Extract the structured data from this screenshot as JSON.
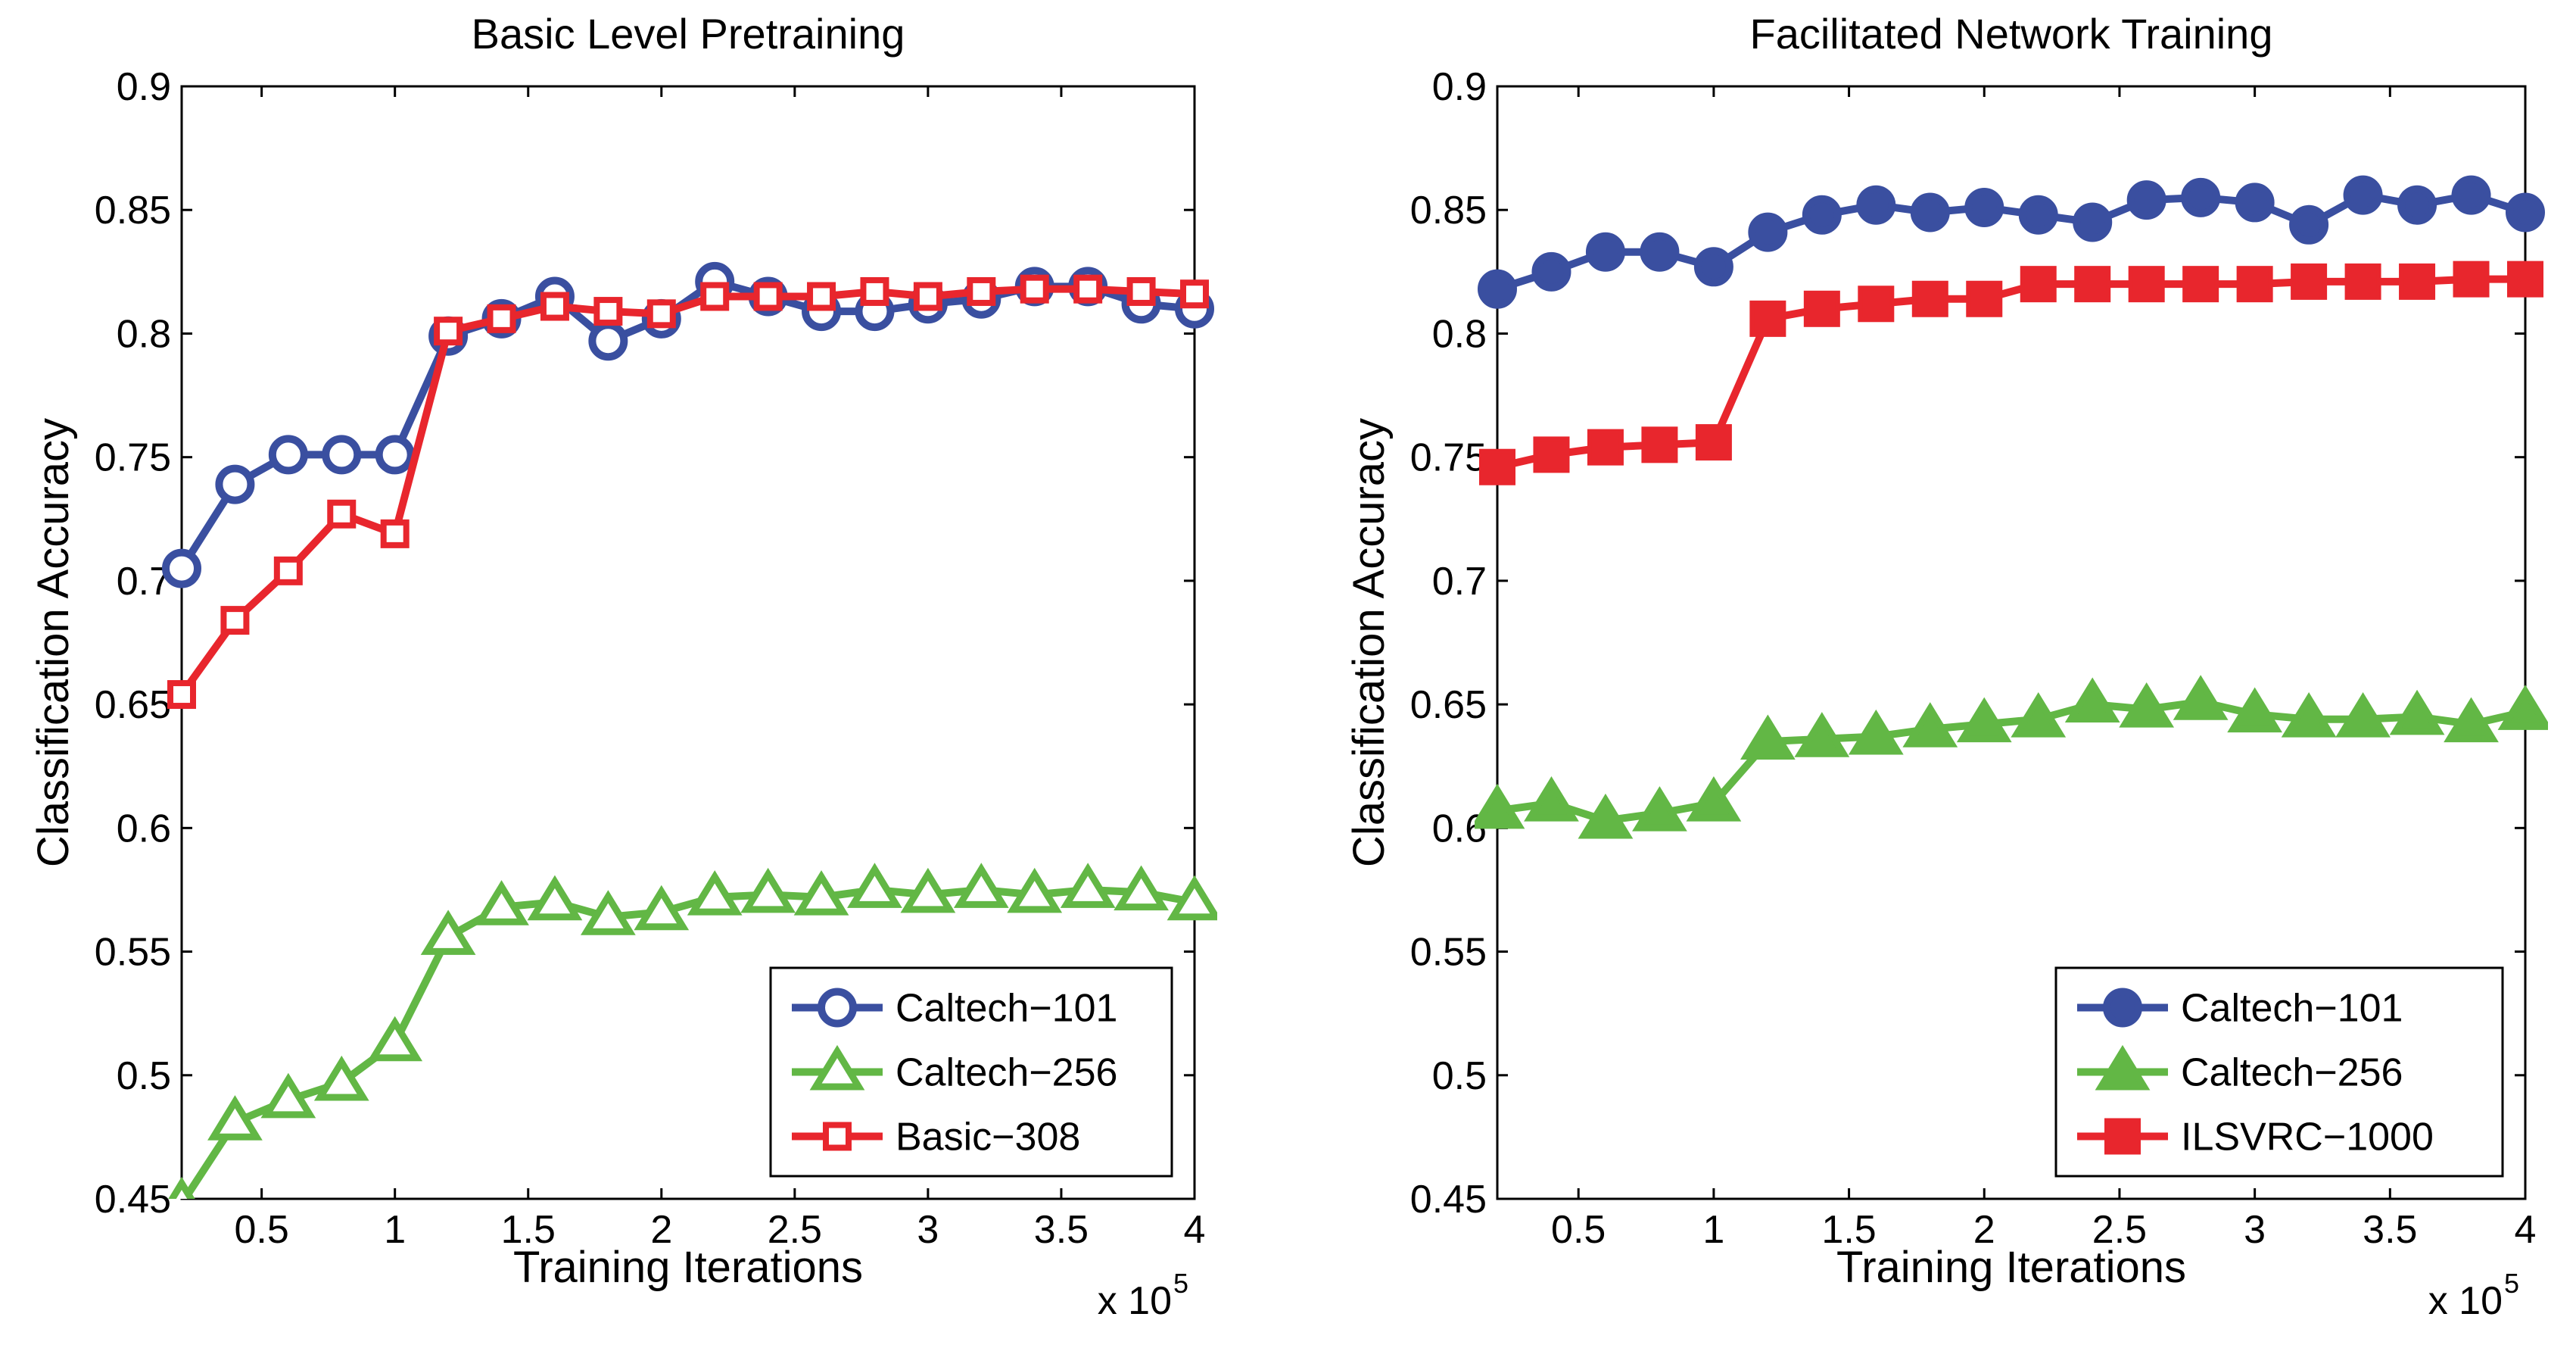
{
  "chart_data": [
    {
      "type": "line",
      "title": "Basic Level Pretraining",
      "xlabel": "Training Iterations",
      "ylabel": "Classification Accuracy",
      "x_multiplier_label": "x 10",
      "x_multiplier_exp": "5",
      "xlim": [
        0.2,
        4.0
      ],
      "ylim": [
        0.45,
        0.9
      ],
      "x_ticks": [
        "0.5",
        "1",
        "1.5",
        "2",
        "2.5",
        "3",
        "3.5",
        "4"
      ],
      "y_ticks": [
        "0.45",
        "0.5",
        "0.55",
        "0.6",
        "0.65",
        "0.7",
        "0.75",
        "0.8",
        "0.85",
        "0.9"
      ],
      "legend_position": "bottom-right",
      "x": [
        0.2,
        0.4,
        0.6,
        0.8,
        1.0,
        1.2,
        1.4,
        1.6,
        1.8,
        2.0,
        2.2,
        2.4,
        2.6,
        2.8,
        3.0,
        3.2,
        3.4,
        3.6,
        3.8,
        4.0
      ],
      "series": [
        {
          "name": "Caltech−101",
          "color": "#3a4fa0",
          "marker": "circle",
          "values": [
            0.705,
            0.739,
            0.751,
            0.751,
            0.751,
            0.799,
            0.806,
            0.815,
            0.797,
            0.806,
            0.821,
            0.815,
            0.809,
            0.809,
            0.812,
            0.814,
            0.819,
            0.819,
            0.812,
            0.81
          ]
        },
        {
          "name": "Caltech−256",
          "color": "#62b745",
          "marker": "triangle",
          "values": [
            0.448,
            0.481,
            0.49,
            0.497,
            0.513,
            0.556,
            0.568,
            0.57,
            0.564,
            0.566,
            0.572,
            0.573,
            0.572,
            0.575,
            0.573,
            0.575,
            0.573,
            0.575,
            0.574,
            0.57
          ]
        },
        {
          "name": "Basic−308",
          "color": "#e8262d",
          "marker": "square",
          "values": [
            0.654,
            0.684,
            0.704,
            0.727,
            0.719,
            0.801,
            0.806,
            0.811,
            0.809,
            0.808,
            0.815,
            0.815,
            0.815,
            0.817,
            0.815,
            0.817,
            0.818,
            0.818,
            0.817,
            0.816
          ]
        }
      ]
    },
    {
      "type": "line",
      "title": "Facilitated Network Training",
      "xlabel": "Training Iterations",
      "ylabel": "Classification Accuracy",
      "x_multiplier_label": "x 10",
      "x_multiplier_exp": "5",
      "xlim": [
        0.2,
        4.0
      ],
      "ylim": [
        0.45,
        0.9
      ],
      "x_ticks": [
        "0.5",
        "1",
        "1.5",
        "2",
        "2.5",
        "3",
        "3.5",
        "4"
      ],
      "y_ticks": [
        "0.45",
        "0.5",
        "0.55",
        "0.6",
        "0.65",
        "0.7",
        "0.75",
        "0.8",
        "0.85",
        "0.9"
      ],
      "legend_position": "bottom-right",
      "x": [
        0.2,
        0.4,
        0.6,
        0.8,
        1.0,
        1.2,
        1.4,
        1.6,
        1.8,
        2.0,
        2.2,
        2.4,
        2.6,
        2.8,
        3.0,
        3.2,
        3.4,
        3.6,
        3.8,
        4.0
      ],
      "series": [
        {
          "name": "Caltech−101",
          "color": "#3a4fa0",
          "marker": "circle-filled",
          "values": [
            0.818,
            0.825,
            0.833,
            0.833,
            0.827,
            0.841,
            0.848,
            0.852,
            0.849,
            0.851,
            0.848,
            0.845,
            0.854,
            0.855,
            0.853,
            0.844,
            0.856,
            0.852,
            0.856,
            0.849
          ]
        },
        {
          "name": "Caltech−256",
          "color": "#62b745",
          "marker": "triangle-filled",
          "values": [
            0.607,
            0.61,
            0.603,
            0.606,
            0.61,
            0.635,
            0.636,
            0.637,
            0.64,
            0.642,
            0.644,
            0.65,
            0.648,
            0.651,
            0.646,
            0.644,
            0.644,
            0.645,
            0.642,
            0.647
          ]
        },
        {
          "name": "ILSVRC−1000",
          "color": "#e8262d",
          "marker": "square-filled",
          "values": [
            0.746,
            0.751,
            0.754,
            0.755,
            0.756,
            0.806,
            0.81,
            0.812,
            0.814,
            0.814,
            0.82,
            0.82,
            0.82,
            0.82,
            0.82,
            0.821,
            0.821,
            0.821,
            0.822,
            0.822
          ]
        }
      ]
    }
  ]
}
